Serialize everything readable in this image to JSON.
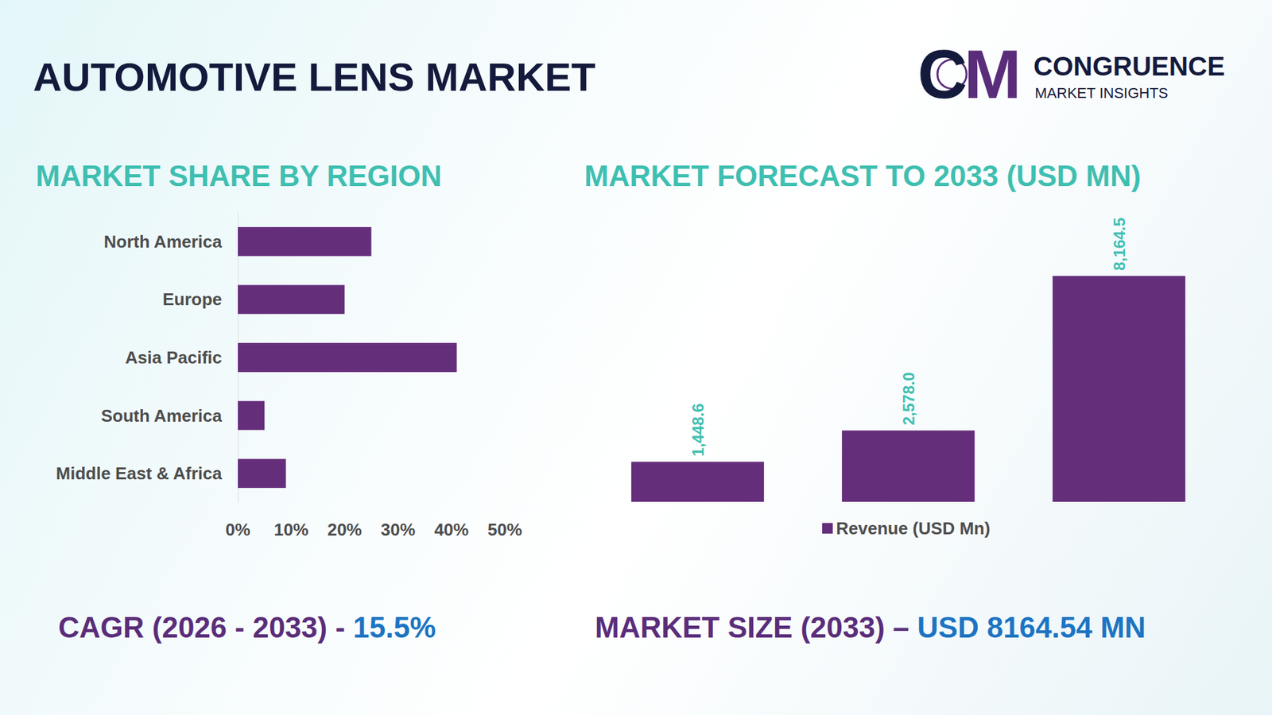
{
  "header": {
    "title": "AUTOMOTIVE LENS MARKET",
    "logo": {
      "initials": "CM",
      "name": "CONGRUENCE",
      "tagline": "MARKET INSIGHTS"
    }
  },
  "chart_data": [
    {
      "type": "bar",
      "title": "MARKET SHARE BY REGION",
      "orientation": "horizontal",
      "categories": [
        "North America",
        "Europe",
        "Asia Pacific",
        "South America",
        "Middle East & Africa"
      ],
      "values": [
        25,
        20,
        41,
        5,
        9
      ],
      "color": "#652e7b",
      "xlim": [
        0,
        50
      ],
      "xticks": [
        {
          "value": 0,
          "label": "0%"
        },
        {
          "value": 10,
          "label": "10%"
        },
        {
          "value": 20,
          "label": "20%"
        },
        {
          "value": 30,
          "label": "30%"
        },
        {
          "value": 40,
          "label": "40%"
        },
        {
          "value": 50,
          "label": "50%"
        }
      ],
      "grid": false
    },
    {
      "type": "bar",
      "title": "MARKET FORECAST TO 2033 (USD MN)",
      "categories": [
        null,
        null,
        null
      ],
      "series": [
        {
          "name": "Revenue (USD Mn)",
          "color": "#652e7b",
          "values": [
            1448.6,
            2578.0,
            8164.5
          ],
          "value_labels": [
            "1,448.6",
            "2,578.0",
            "8,164.5"
          ]
        }
      ],
      "ylim": [
        0,
        10000
      ],
      "data_labels": true,
      "tick_labels": false,
      "legend": "bottom",
      "grid": false
    }
  ],
  "footer": {
    "cagr_label": "CAGR (2026 - 2033) -",
    "cagr_value": "15.5%",
    "size_label": "MARKET SIZE (2033) –",
    "size_value": "USD 8164.54 MN"
  }
}
